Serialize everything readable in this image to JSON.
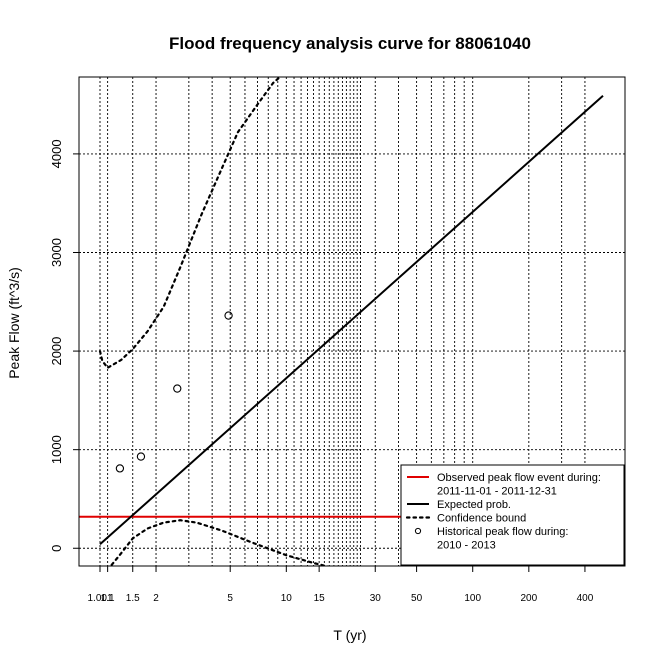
{
  "chart_data": {
    "type": "line",
    "title": "Flood frequency analysis curve for 88061040",
    "xlabel": "T (yr)",
    "ylabel": "Peak Flow (ft^3/s)",
    "x_scale": "log",
    "xlim": [
      1.001,
      500
    ],
    "ylim": [
      -180,
      4780
    ],
    "x_ticks": [
      1.001,
      1.1,
      1.5,
      2,
      5,
      10,
      15,
      30,
      50,
      100,
      200,
      400
    ],
    "x_tick_labels": [
      "1.001",
      "1.1",
      "1.5",
      "2",
      "5",
      "10",
      "15",
      "30",
      "50",
      "100",
      "200",
      "400"
    ],
    "y_ticks": [
      0,
      1000,
      2000,
      3000,
      4000
    ],
    "y_tick_labels": [
      "0",
      "1000",
      "2000",
      "3000",
      "4000"
    ],
    "grid": true,
    "legend_position": "bottom-right",
    "legend": [
      {
        "label_lines": [
          "Observed peak flow event during:",
          "2011-11-01 - 2011-12-31"
        ],
        "style": "red-line"
      },
      {
        "label_lines": [
          "Expected prob."
        ],
        "style": "black-line"
      },
      {
        "label_lines": [
          "Confidence bound"
        ],
        "style": "dotted-line"
      },
      {
        "label_lines": [
          "Historical peak flow during:",
          "2010 - 2013"
        ],
        "style": "open-circle"
      }
    ],
    "observed_peak": {
      "value": 320,
      "color": "#e00000"
    },
    "expected": {
      "x": [
        1.001,
        500
      ],
      "y": [
        40,
        4590
      ]
    },
    "upper_bound": {
      "x": [
        1.001,
        1.03,
        1.1,
        1.3,
        1.5,
        1.8,
        2.2,
        2.7,
        3.5,
        4.5,
        5.5,
        7.0,
        8.5,
        9.5
      ],
      "y": [
        2000,
        1900,
        1830,
        1910,
        2020,
        2200,
        2450,
        2850,
        3380,
        3850,
        4220,
        4500,
        4720,
        4800
      ]
    },
    "lower_bound": {
      "x": [
        1.1,
        1.3,
        1.5,
        1.8,
        2.2,
        2.7,
        3.3,
        4.5,
        6.5,
        10,
        14,
        18
      ],
      "y": [
        -220,
        -50,
        100,
        200,
        260,
        285,
        260,
        180,
        60,
        -70,
        -150,
        -200
      ]
    },
    "historical_points": {
      "x": [
        1.28,
        1.66,
        2.6,
        4.9
      ],
      "y": [
        810,
        930,
        1620,
        2360
      ]
    },
    "colors": {
      "observed": "#e00000",
      "expected": "#000000",
      "bounds": "#000000",
      "grid": "#000000",
      "points": "#000000"
    }
  }
}
